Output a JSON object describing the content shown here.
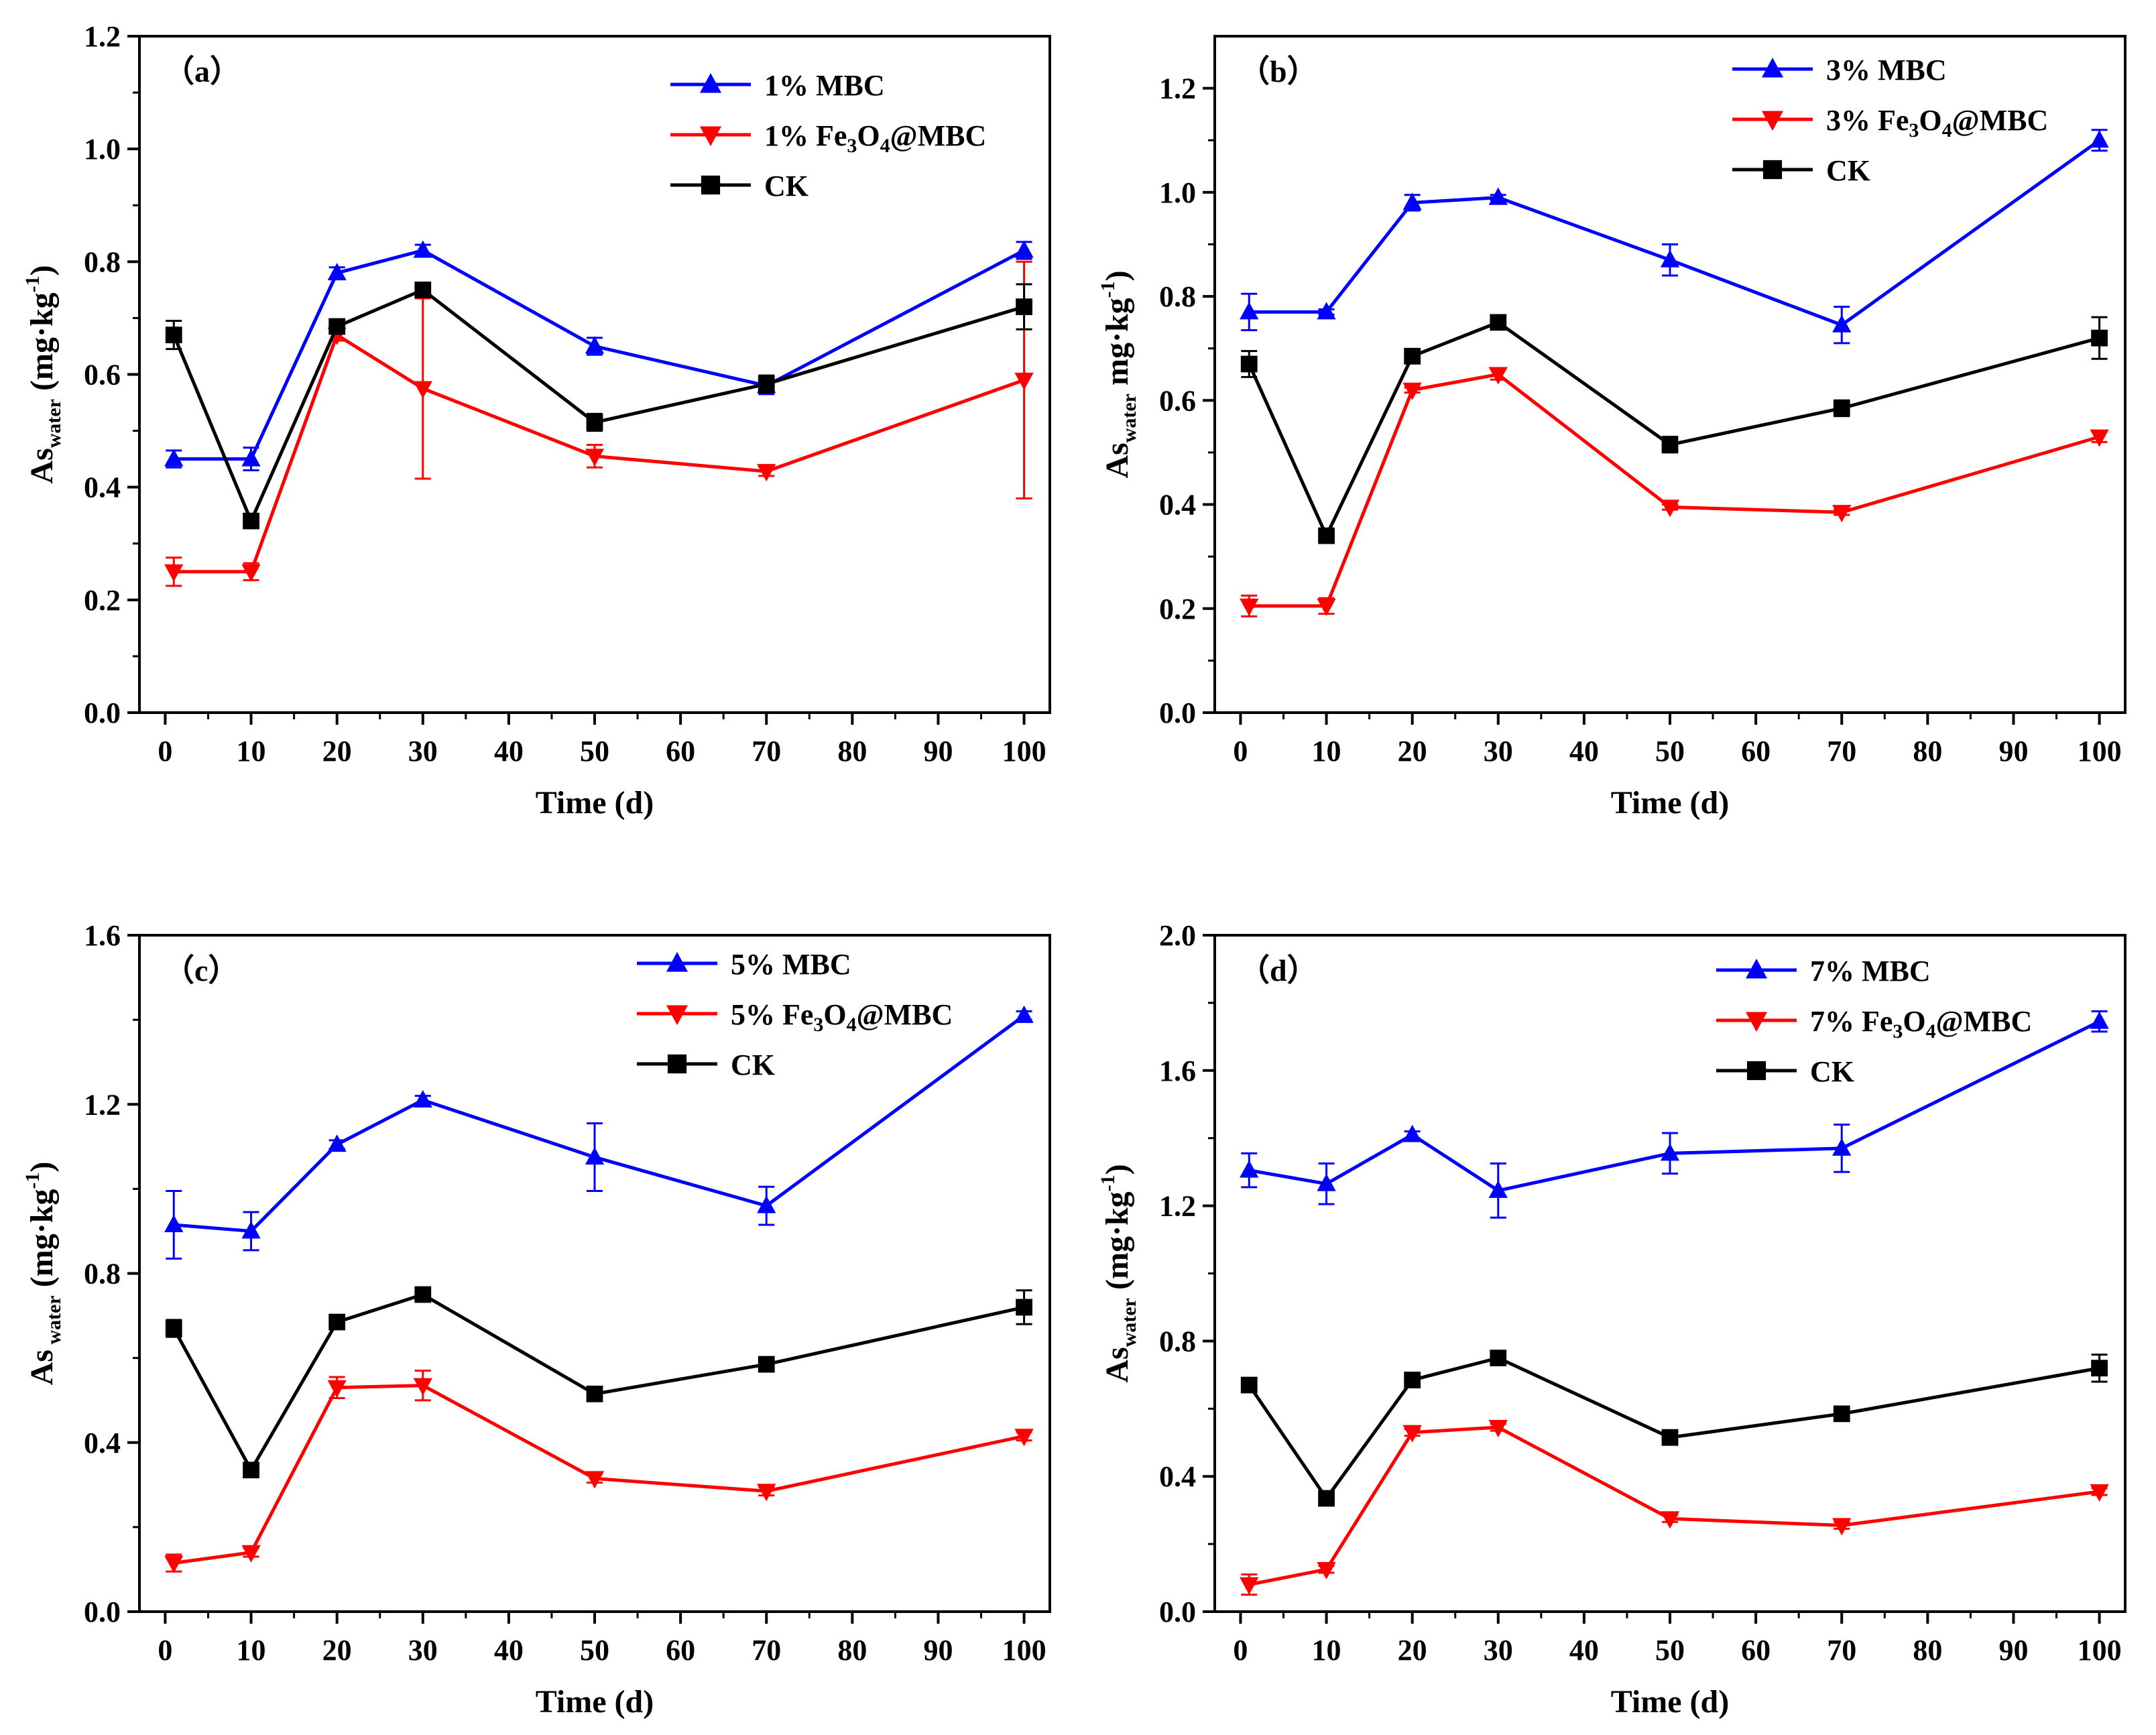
{
  "chart_data": [
    {
      "type": "line",
      "panel_label": "（a）",
      "x": [
        1,
        10,
        20,
        30,
        50,
        70,
        100
      ],
      "xlim": [
        -3,
        103
      ],
      "xticks": [
        0,
        10,
        20,
        30,
        40,
        50,
        60,
        70,
        80,
        90,
        100
      ],
      "xtick_labels": [
        "0",
        "10",
        "20",
        "30",
        "40",
        "50",
        "60",
        "70",
        "80",
        "90",
        "100"
      ],
      "ylim": [
        0,
        1.2
      ],
      "yticks": [
        0.0,
        0.2,
        0.4,
        0.6,
        0.8,
        1.0,
        1.2
      ],
      "ytick_labels": [
        "0.0",
        "0.2",
        "0.4",
        "0.6",
        "0.8",
        "1.0",
        "1.2"
      ],
      "xlabel": "Time (d)",
      "ylabel": {
        "main": "As",
        "sub": "water",
        "unit_open": " (mg·kg",
        "sup": "-1",
        "unit_close": ")"
      },
      "legend_position": "top-right",
      "series": [
        {
          "name": "1% MBC",
          "legend": {
            "pre": "1% MBC"
          },
          "color": "#0000ff",
          "marker": "triangle-up",
          "values": [
            0.45,
            0.45,
            0.78,
            0.82,
            0.65,
            0.58,
            0.82
          ],
          "errors": [
            0.015,
            0.02,
            0.01,
            0.01,
            0.015,
            0.015,
            0.015
          ]
        },
        {
          "name": "1% Fe3O4@MBC",
          "legend": {
            "pre": "1% Fe",
            "sub1": "3",
            "mid": "O",
            "sub2": "4",
            "post": "@MBC"
          },
          "color": "#ff0000",
          "marker": "triangle-down",
          "values": [
            0.25,
            0.25,
            0.67,
            0.575,
            0.455,
            0.428,
            0.59
          ],
          "errors": [
            0.025,
            0.015,
            0.01,
            0.16,
            0.02,
            0.008,
            0.21
          ]
        },
        {
          "name": "CK",
          "legend": {
            "pre": "CK"
          },
          "color": "#000000",
          "marker": "square",
          "values": [
            0.67,
            0.34,
            0.685,
            0.75,
            0.515,
            0.583,
            0.72
          ],
          "errors": [
            0.025,
            0.005,
            0.005,
            0.005,
            0.015,
            0.015,
            0.04
          ]
        }
      ]
    },
    {
      "type": "line",
      "panel_label": "（b）",
      "x": [
        1,
        10,
        20,
        30,
        50,
        70,
        100
      ],
      "xlim": [
        -3,
        103
      ],
      "xticks": [
        0,
        10,
        20,
        30,
        40,
        50,
        60,
        70,
        80,
        90,
        100
      ],
      "xtick_labels": [
        "0",
        "10",
        "20",
        "30",
        "40",
        "50",
        "60",
        "70",
        "80",
        "90",
        "100"
      ],
      "ylim": [
        0,
        1.3
      ],
      "yticks": [
        0.0,
        0.2,
        0.4,
        0.6,
        0.8,
        1.0,
        1.2
      ],
      "ytick_labels": [
        "0.0",
        "0.2",
        "0.4",
        "0.6",
        "0.8",
        "1.0",
        "1.2"
      ],
      "xlabel": "Time (d)",
      "ylabel": {
        "main": "As",
        "sub": "water",
        "unit_open": " mg·kg",
        "sup": "-1",
        "unit_close": ")"
      },
      "legend_position": "top-right",
      "series": [
        {
          "name": "3% MBC",
          "legend": {
            "pre": "3% MBC"
          },
          "color": "#0000ff",
          "marker": "triangle-up",
          "values": [
            0.77,
            0.77,
            0.98,
            0.99,
            0.87,
            0.745,
            1.1
          ],
          "errors": [
            0.035,
            0.005,
            0.015,
            0.005,
            0.03,
            0.035,
            0.02
          ]
        },
        {
          "name": "3% Fe3O4@MBC",
          "legend": {
            "pre": "3% Fe",
            "sub1": "3",
            "mid": "O",
            "sub2": "4",
            "post": "@MBC"
          },
          "color": "#ff0000",
          "marker": "triangle-down",
          "values": [
            0.205,
            0.205,
            0.62,
            0.65,
            0.395,
            0.385,
            0.53
          ],
          "errors": [
            0.02,
            0.015,
            0.005,
            0.01,
            0.005,
            0.005,
            0.01
          ]
        },
        {
          "name": "CK",
          "legend": {
            "pre": "CK"
          },
          "color": "#000000",
          "marker": "square",
          "values": [
            0.67,
            0.34,
            0.685,
            0.75,
            0.515,
            0.585,
            0.72
          ],
          "errors": [
            0.025,
            0.005,
            0.005,
            0.005,
            0.015,
            0.015,
            0.04
          ]
        }
      ]
    },
    {
      "type": "line",
      "panel_label": "（c）",
      "x": [
        1,
        10,
        20,
        30,
        50,
        70,
        100
      ],
      "xlim": [
        -3,
        103
      ],
      "xticks": [
        0,
        10,
        20,
        30,
        40,
        50,
        60,
        70,
        80,
        90,
        100
      ],
      "xtick_labels": [
        "0",
        "10",
        "20",
        "30",
        "40",
        "50",
        "60",
        "70",
        "80",
        "90",
        "100"
      ],
      "ylim": [
        0,
        1.6
      ],
      "yticks": [
        0.0,
        0.4,
        0.8,
        1.2,
        1.6
      ],
      "ytick_labels": [
        "0.0",
        "0.4",
        "0.8",
        "1.2",
        "1.6"
      ],
      "xlabel": "Time (d)",
      "ylabel": {
        "main": "As",
        "sub": " water",
        "unit_open": " (mg·kg",
        "sup": "-1",
        "unit_close": ")"
      },
      "legend_position": "top-right",
      "series": [
        {
          "name": "5% MBC",
          "legend": {
            "pre": "5% MBC"
          },
          "color": "#0000ff",
          "marker": "triangle-up",
          "values": [
            0.915,
            0.9,
            1.105,
            1.21,
            1.075,
            0.96,
            1.41
          ],
          "errors": [
            0.08,
            0.045,
            0.01,
            0.01,
            0.08,
            0.045,
            0.01
          ]
        },
        {
          "name": "5% Fe3O4@MBC",
          "legend": {
            "pre": "5% Fe",
            "sub1": "3",
            "mid": "O",
            "sub2": "4",
            "post": "@MBC"
          },
          "color": "#ff0000",
          "marker": "triangle-down",
          "values": [
            0.115,
            0.14,
            0.53,
            0.535,
            0.315,
            0.285,
            0.415
          ],
          "errors": [
            0.02,
            0.01,
            0.025,
            0.035,
            0.01,
            0.01,
            0.01
          ]
        },
        {
          "name": "CK",
          "legend": {
            "pre": "CK"
          },
          "color": "#000000",
          "marker": "square",
          "values": [
            0.67,
            0.335,
            0.685,
            0.75,
            0.515,
            0.585,
            0.72
          ],
          "errors": [
            0.02,
            0.005,
            0.005,
            0.005,
            0.01,
            0.01,
            0.04
          ]
        }
      ]
    },
    {
      "type": "line",
      "panel_label": "（d）",
      "x": [
        1,
        10,
        20,
        30,
        50,
        70,
        100
      ],
      "xlim": [
        -3,
        103
      ],
      "xticks": [
        0,
        10,
        20,
        30,
        40,
        50,
        60,
        70,
        80,
        90,
        100
      ],
      "xtick_labels": [
        "0",
        "10",
        "20",
        "30",
        "40",
        "50",
        "60",
        "70",
        "80",
        "90",
        "100"
      ],
      "ylim": [
        0,
        2.0
      ],
      "yticks": [
        0.0,
        0.4,
        0.8,
        1.2,
        1.6,
        2.0
      ],
      "ytick_labels": [
        "0.0",
        "0.4",
        "0.8",
        "1.2",
        "1.6",
        "2.0"
      ],
      "xlabel": "Time (d)",
      "ylabel": {
        "main": "As",
        "sub": "water",
        "unit_open": " (mg·kg",
        "sup": "-1",
        "unit_close": ")"
      },
      "legend_position": "top-right",
      "series": [
        {
          "name": "7% MBC",
          "legend": {
            "pre": "7% MBC"
          },
          "color": "#0000ff",
          "marker": "triangle-up",
          "values": [
            1.305,
            1.265,
            1.41,
            1.245,
            1.355,
            1.37,
            1.745
          ],
          "errors": [
            0.05,
            0.06,
            0.01,
            0.08,
            0.06,
            0.07,
            0.03
          ]
        },
        {
          "name": "7% Fe3O4@MBC",
          "legend": {
            "pre": "7% Fe",
            "sub1": "3",
            "mid": "O",
            "sub2": "4",
            "post": "@MBC"
          },
          "color": "#ff0000",
          "marker": "triangle-down",
          "values": [
            0.08,
            0.125,
            0.53,
            0.545,
            0.275,
            0.255,
            0.355
          ],
          "errors": [
            0.03,
            0.01,
            0.01,
            0.01,
            0.01,
            0.01,
            0.01
          ]
        },
        {
          "name": "CK",
          "legend": {
            "pre": "CK"
          },
          "color": "#000000",
          "marker": "square",
          "values": [
            0.67,
            0.335,
            0.685,
            0.75,
            0.515,
            0.585,
            0.72
          ],
          "errors": [
            0.02,
            0.005,
            0.005,
            0.005,
            0.01,
            0.01,
            0.04
          ]
        }
      ]
    }
  ]
}
